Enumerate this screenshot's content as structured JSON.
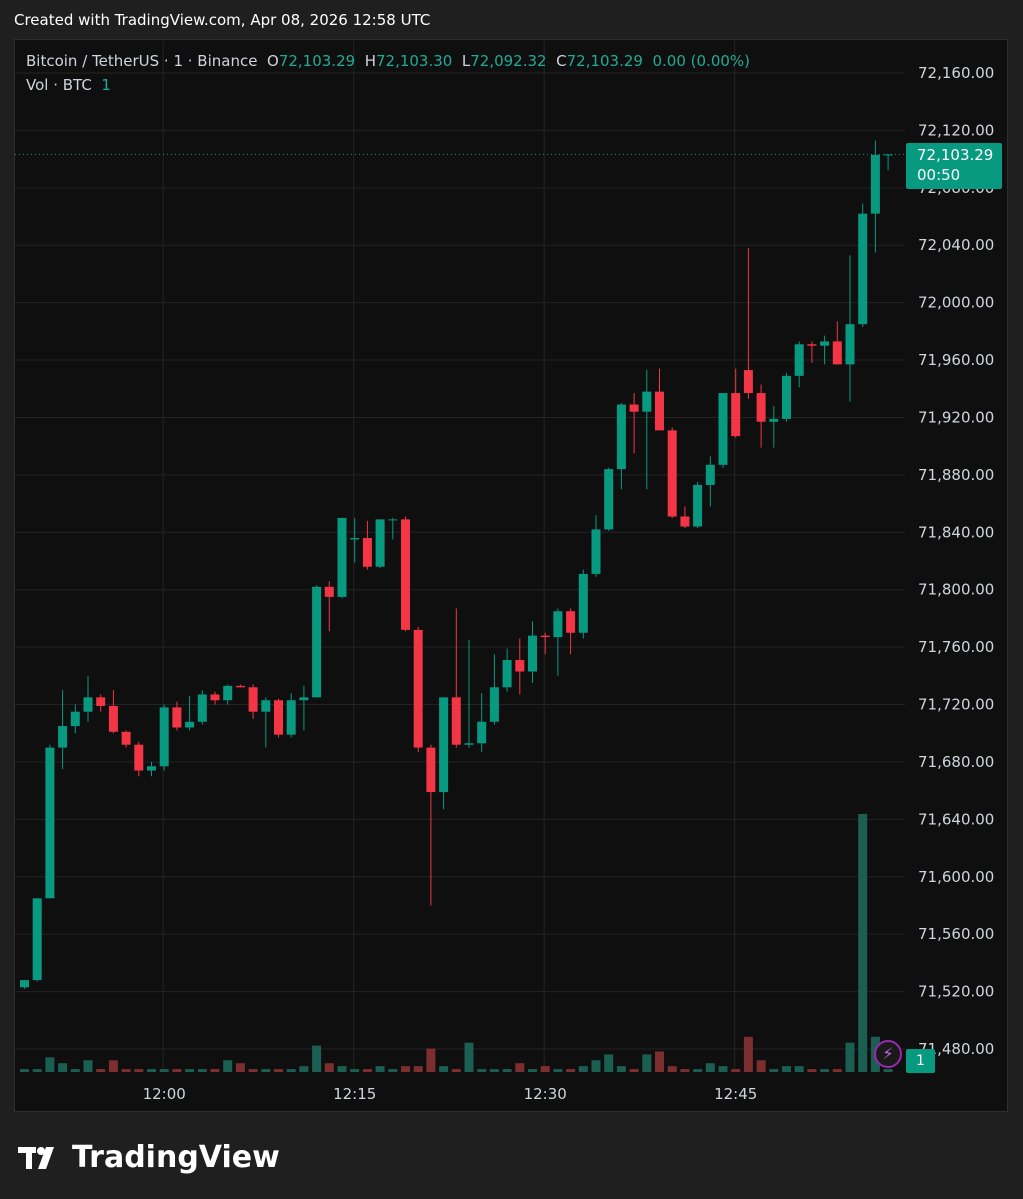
{
  "header": {
    "created": "Created with TradingView.com, Apr 08, 2026 12:58 UTC"
  },
  "legend": {
    "symbol": "Bitcoin / TetherUS · 1 · Binance",
    "o_label": "O",
    "o_val": "72,103.29",
    "h_label": "H",
    "h_val": "72,103.30",
    "l_label": "L",
    "l_val": "72,092.32",
    "c_label": "C",
    "c_val": "72,103.29",
    "change": "0.00 (0.00%)",
    "vol_label": "Vol · BTC",
    "vol_val": "1"
  },
  "price_tag": {
    "price": "72,103.29",
    "countdown": "00:50"
  },
  "vol_tag": "1",
  "brand": "TradingView",
  "colors": {
    "up": "#089981",
    "down": "#f23645",
    "up_vol": "#1b5e52",
    "down_vol": "#7d2e2e",
    "grid": "#232323",
    "text": "#d1d4dc"
  },
  "chart_data": {
    "type": "candlestick",
    "title": "Bitcoin / TetherUS · 1 · Binance",
    "y_axis": {
      "min": 71455,
      "max": 72170,
      "ticks": [
        "72,160.00",
        "72,120.00",
        "72,080.00",
        "72,040.00",
        "72,000.00",
        "71,960.00",
        "71,920.00",
        "71,880.00",
        "71,840.00",
        "71,800.00",
        "71,760.00",
        "71,720.00",
        "71,680.00",
        "71,640.00",
        "71,600.00",
        "71,560.00",
        "71,520.00",
        "71,480.00"
      ],
      "tick_values": [
        72160,
        72120,
        72080,
        72040,
        72000,
        71960,
        71920,
        71880,
        71840,
        71800,
        71760,
        71720,
        71680,
        71640,
        71600,
        71560,
        71520,
        71480
      ]
    },
    "x_axis": {
      "ticks": [
        "12:00",
        "12:15",
        "12:30",
        "12:45"
      ],
      "tick_index": [
        11,
        26,
        41,
        56
      ]
    },
    "last_price": 72103.29,
    "candles": [
      {
        "o": 71523,
        "h": 71528,
        "l": 71522,
        "c": 71528,
        "v": 1
      },
      {
        "o": 71528,
        "h": 71585,
        "l": 71527,
        "c": 71585,
        "v": 1
      },
      {
        "o": 71585,
        "h": 71692,
        "l": 71585,
        "c": 71690,
        "v": 5
      },
      {
        "o": 71690,
        "h": 71730,
        "l": 71675,
        "c": 71705,
        "v": 3
      },
      {
        "o": 71705,
        "h": 71720,
        "l": 71700,
        "c": 71715,
        "v": 1
      },
      {
        "o": 71715,
        "h": 71740,
        "l": 71708,
        "c": 71725,
        "v": 4
      },
      {
        "o": 71725,
        "h": 71727,
        "l": 71715,
        "c": 71719,
        "v": 1
      },
      {
        "o": 71719,
        "h": 71730,
        "l": 71700,
        "c": 71701,
        "v": 4
      },
      {
        "o": 71701,
        "h": 71702,
        "l": 71690,
        "c": 71692,
        "v": 1
      },
      {
        "o": 71692,
        "h": 71694,
        "l": 71670,
        "c": 71674,
        "v": 1
      },
      {
        "o": 71674,
        "h": 71680,
        "l": 71670,
        "c": 71677,
        "v": 1
      },
      {
        "o": 71677,
        "h": 71720,
        "l": 71674,
        "c": 71718,
        "v": 1
      },
      {
        "o": 71718,
        "h": 71722,
        "l": 71702,
        "c": 71704,
        "v": 1
      },
      {
        "o": 71704,
        "h": 71726,
        "l": 71702,
        "c": 71708,
        "v": 1
      },
      {
        "o": 71708,
        "h": 71730,
        "l": 71706,
        "c": 71727,
        "v": 1
      },
      {
        "o": 71727,
        "h": 71729,
        "l": 71720,
        "c": 71723,
        "v": 1
      },
      {
        "o": 71723,
        "h": 71734,
        "l": 71720,
        "c": 71733,
        "v": 4
      },
      {
        "o": 71733,
        "h": 71734,
        "l": 71732,
        "c": 71732,
        "v": 3
      },
      {
        "o": 71732,
        "h": 71734,
        "l": 71710,
        "c": 71715,
        "v": 1
      },
      {
        "o": 71715,
        "h": 71725,
        "l": 71690,
        "c": 71723,
        "v": 1
      },
      {
        "o": 71723,
        "h": 71724,
        "l": 71697,
        "c": 71699,
        "v": 1
      },
      {
        "o": 71699,
        "h": 71728,
        "l": 71697,
        "c": 71723,
        "v": 1
      },
      {
        "o": 71723,
        "h": 71733,
        "l": 71702,
        "c": 71725,
        "v": 2
      },
      {
        "o": 71725,
        "h": 71803,
        "l": 71725,
        "c": 71802,
        "v": 9
      },
      {
        "o": 71802,
        "h": 71806,
        "l": 71771,
        "c": 71795,
        "v": 3
      },
      {
        "o": 71795,
        "h": 71850,
        "l": 71794,
        "c": 71850,
        "v": 2
      },
      {
        "o": 71835,
        "h": 71850,
        "l": 71819,
        "c": 71836,
        "v": 1
      },
      {
        "o": 71836,
        "h": 71848,
        "l": 71814,
        "c": 71816,
        "v": 1
      },
      {
        "o": 71816,
        "h": 71849,
        "l": 71815,
        "c": 71849,
        "v": 2
      },
      {
        "o": 71849,
        "h": 71850,
        "l": 71835,
        "c": 71849,
        "v": 1
      },
      {
        "o": 71849,
        "h": 71851,
        "l": 71771,
        "c": 71772,
        "v": 2
      },
      {
        "o": 71772,
        "h": 71774,
        "l": 71687,
        "c": 71690,
        "v": 2
      },
      {
        "o": 71690,
        "h": 71692,
        "l": 71580,
        "c": 71659,
        "v": 8
      },
      {
        "o": 71659,
        "h": 71725,
        "l": 71647,
        "c": 71725,
        "v": 2
      },
      {
        "o": 71725,
        "h": 71787,
        "l": 71690,
        "c": 71692,
        "v": 1
      },
      {
        "o": 71692,
        "h": 71765,
        "l": 71690,
        "c": 71693,
        "v": 10
      },
      {
        "o": 71693,
        "h": 71728,
        "l": 71687,
        "c": 71708,
        "v": 1
      },
      {
        "o": 71708,
        "h": 71755,
        "l": 71706,
        "c": 71732,
        "v": 1
      },
      {
        "o": 71732,
        "h": 71759,
        "l": 71729,
        "c": 71751,
        "v": 1
      },
      {
        "o": 71751,
        "h": 71766,
        "l": 71727,
        "c": 71743,
        "v": 3
      },
      {
        "o": 71743,
        "h": 71778,
        "l": 71735,
        "c": 71768,
        "v": 1
      },
      {
        "o": 71768,
        "h": 71770,
        "l": 71755,
        "c": 71767,
        "v": 2
      },
      {
        "o": 71767,
        "h": 71787,
        "l": 71740,
        "c": 71785,
        "v": 1
      },
      {
        "o": 71785,
        "h": 71787,
        "l": 71755,
        "c": 71770,
        "v": 1
      },
      {
        "o": 71770,
        "h": 71814,
        "l": 71766,
        "c": 71811,
        "v": 2
      },
      {
        "o": 71811,
        "h": 71852,
        "l": 71809,
        "c": 71842,
        "v": 4
      },
      {
        "o": 71842,
        "h": 71885,
        "l": 71841,
        "c": 71884,
        "v": 6
      },
      {
        "o": 71884,
        "h": 71930,
        "l": 71870,
        "c": 71929,
        "v": 2
      },
      {
        "o": 71929,
        "h": 71937,
        "l": 71895,
        "c": 71924,
        "v": 1
      },
      {
        "o": 71924,
        "h": 71953,
        "l": 71870,
        "c": 71938,
        "v": 6
      },
      {
        "o": 71938,
        "h": 71954,
        "l": 71911,
        "c": 71911,
        "v": 7
      },
      {
        "o": 71911,
        "h": 71913,
        "l": 71850,
        "c": 71851,
        "v": 2
      },
      {
        "o": 71851,
        "h": 71858,
        "l": 71843,
        "c": 71844,
        "v": 1
      },
      {
        "o": 71844,
        "h": 71875,
        "l": 71843,
        "c": 71873,
        "v": 1
      },
      {
        "o": 71873,
        "h": 71893,
        "l": 71858,
        "c": 71887,
        "v": 3
      },
      {
        "o": 71887,
        "h": 71936,
        "l": 71885,
        "c": 71937,
        "v": 2
      },
      {
        "o": 71937,
        "h": 71954,
        "l": 71906,
        "c": 71907,
        "v": 1
      },
      {
        "o": 71953,
        "h": 72038,
        "l": 71933,
        "c": 71937,
        "v": 12
      },
      {
        "o": 71937,
        "h": 71943,
        "l": 71899,
        "c": 71917,
        "v": 4
      },
      {
        "o": 71917,
        "h": 71928,
        "l": 71899,
        "c": 71919,
        "v": 1
      },
      {
        "o": 71919,
        "h": 71951,
        "l": 71917,
        "c": 71949,
        "v": 2
      },
      {
        "o": 71949,
        "h": 71973,
        "l": 71941,
        "c": 71971,
        "v": 2
      },
      {
        "o": 71971,
        "h": 71973,
        "l": 71958,
        "c": 71970,
        "v": 1
      },
      {
        "o": 71970,
        "h": 71977,
        "l": 71957,
        "c": 71973,
        "v": 1
      },
      {
        "o": 71973,
        "h": 71987,
        "l": 71957,
        "c": 71957,
        "v": 1
      },
      {
        "o": 71957,
        "h": 72033,
        "l": 71931,
        "c": 71985,
        "v": 10
      },
      {
        "o": 71985,
        "h": 72069,
        "l": 71983,
        "c": 72062,
        "v": 88
      },
      {
        "o": 72062,
        "h": 72113,
        "l": 72035,
        "c": 72103,
        "v": 12
      },
      {
        "o": 72103.29,
        "h": 72103.3,
        "l": 72092.32,
        "c": 72103.29,
        "v": 1
      }
    ]
  }
}
